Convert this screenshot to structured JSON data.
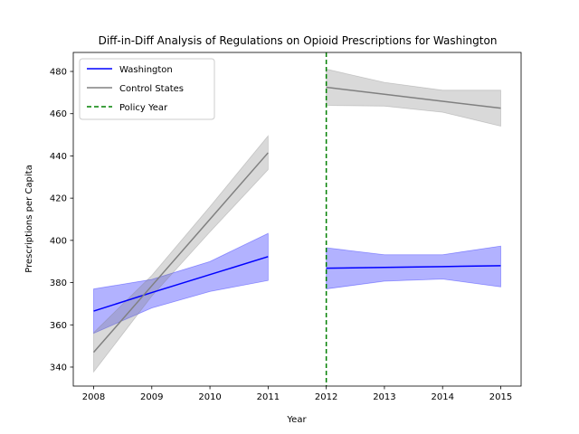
{
  "chart_data": {
    "type": "line",
    "title": "Diff-in-Diff Analysis of Regulations on Opioid Prescriptions for Washington",
    "xlabel": "Year",
    "ylabel": "Prescriptions per Capita",
    "xlim": [
      2007.65,
      2015.35
    ],
    "ylim": [
      331,
      489
    ],
    "x_ticks": [
      2008,
      2009,
      2010,
      2011,
      2012,
      2013,
      2014,
      2015
    ],
    "y_ticks": [
      340,
      360,
      380,
      400,
      420,
      440,
      460,
      480
    ],
    "grid": false,
    "legend_position": "top-left",
    "policy_year": 2012,
    "series": [
      {
        "name": "Washington",
        "color": "#0000ff",
        "segments": [
          {
            "x": [
              2008,
              2009,
              2010,
              2011
            ],
            "y": [
              366.5,
              375.3,
              383.8,
              392.3
            ],
            "lower": [
              356.0,
              368.0,
              375.8,
              381.0
            ],
            "upper": [
              377.0,
              381.5,
              390.0,
              403.3
            ]
          },
          {
            "x": [
              2012,
              2013,
              2014,
              2015
            ],
            "y": [
              386.8,
              387.2,
              387.6,
              388.0
            ],
            "lower": [
              377.0,
              380.7,
              381.7,
              378.0
            ],
            "upper": [
              396.5,
              393.2,
              393.2,
              397.3
            ]
          }
        ]
      },
      {
        "name": "Control States",
        "color": "#808080",
        "segments": [
          {
            "x": [
              2008,
              2009,
              2010,
              2011
            ],
            "y": [
              347.0,
              378.5,
              410.0,
              441.5
            ],
            "lower": [
              337.7,
              373.6,
              404.0,
              433.5
            ],
            "upper": [
              356.3,
              383.4,
              416.0,
              449.5
            ]
          },
          {
            "x": [
              2012,
              2013,
              2014,
              2015
            ],
            "y": [
              472.5,
              469.2,
              465.9,
              462.6
            ],
            "lower": [
              463.9,
              463.6,
              460.7,
              454.1
            ],
            "upper": [
              481.1,
              474.8,
              471.1,
              471.1
            ]
          }
        ]
      }
    ],
    "vlines": [
      {
        "name": "Policy Year",
        "x": 2012,
        "color": "#008000",
        "style": "dashed"
      }
    ],
    "legend": [
      "Washington",
      "Control States",
      "Policy Year"
    ]
  }
}
